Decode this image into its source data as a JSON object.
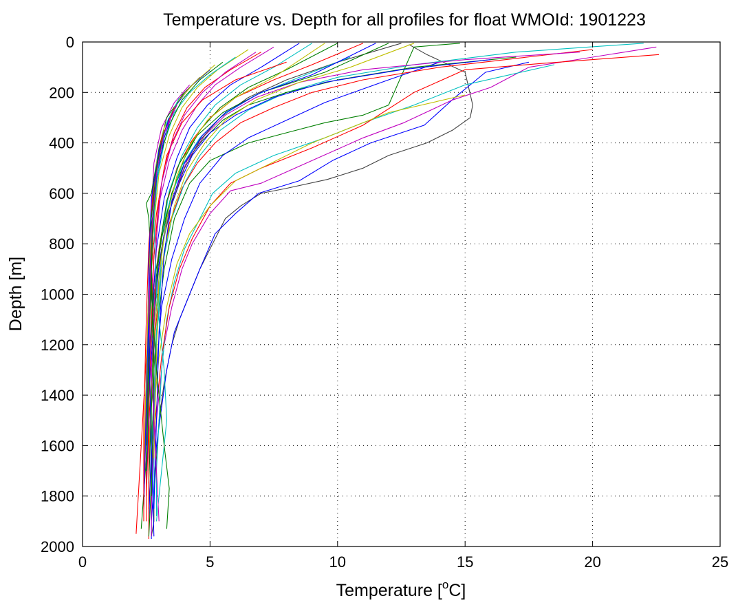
{
  "chart_data": {
    "type": "line",
    "title": "Temperature vs. Depth for all profiles for float WMOId: 1901223",
    "xlabel": "Temperature [",
    "xlabel_sup": "o",
    "xlabel_unit": "C]",
    "ylabel": "Depth [m]",
    "xlim": [
      0,
      25
    ],
    "ylim": [
      0,
      2000
    ],
    "y_inverted": true,
    "grid": true,
    "x_ticks": [
      0,
      5,
      10,
      15,
      20,
      25
    ],
    "y_ticks": [
      0,
      200,
      400,
      600,
      800,
      1000,
      1200,
      1400,
      1600,
      1800,
      2000
    ],
    "x_tick_labels": [
      "0",
      "5",
      "10",
      "15",
      "20",
      "25"
    ],
    "y_tick_labels": [
      "0",
      "200",
      "400",
      "600",
      "800",
      "1000",
      "1200",
      "1400",
      "1600",
      "1800",
      "2000"
    ],
    "series_colors": [
      "#ff0000",
      "#00bfbf",
      "#0000ff",
      "#bfbf00",
      "#bf00bf",
      "#007f00",
      "#404040"
    ],
    "series": [
      {
        "color": "#404040",
        "temperature": [
          12.8,
          13.5,
          15.0,
          15.3,
          15.2,
          14.5,
          13.5,
          12.0,
          11.0,
          9.6,
          8.0,
          7.0,
          6.2,
          5.6,
          5.2,
          4.6,
          4.2,
          3.8,
          3.5,
          3.2,
          3.0,
          2.9,
          2.8,
          2.8,
          2.7
        ],
        "depth": [
          10,
          50,
          120,
          250,
          300,
          350,
          400,
          450,
          500,
          545,
          580,
          600,
          650,
          700,
          780,
          900,
          1000,
          1100,
          1200,
          1350,
          1500,
          1650,
          1800,
          1900,
          1960
        ]
      },
      {
        "color": "#0000ff",
        "temperature": [
          17.5,
          15.8,
          14.6,
          13.4,
          11.3,
          9.8,
          8.5,
          6.9,
          6.0,
          5.2,
          4.6,
          4.2,
          3.6,
          3.3,
          3.1,
          2.9,
          2.8,
          2.7,
          2.7
        ],
        "depth": [
          80,
          120,
          220,
          330,
          400,
          470,
          550,
          600,
          680,
          760,
          900,
          1000,
          1150,
          1300,
          1450,
          1600,
          1750,
          1900,
          1970
        ]
      },
      {
        "color": "#bf00bf",
        "temperature": [
          22.5,
          20.0,
          17.5,
          16.0,
          14.5,
          12.6,
          11.0,
          9.0,
          7.0,
          5.8,
          5.0,
          4.3,
          3.9,
          3.5,
          3.2,
          3.0,
          2.8,
          2.7,
          2.7
        ],
        "depth": [
          20,
          60,
          100,
          180,
          230,
          320,
          380,
          470,
          560,
          590,
          680,
          800,
          900,
          1050,
          1200,
          1400,
          1600,
          1800,
          1960
        ]
      },
      {
        "color": "#00bfbf",
        "temperature": [
          18.5,
          15.0,
          13.0,
          11.0,
          9.5,
          7.5,
          6.0,
          5.1,
          4.6,
          4.0,
          3.6,
          3.3,
          3.1,
          3.0,
          2.9,
          2.9
        ],
        "depth": [
          90,
          170,
          250,
          320,
          380,
          450,
          520,
          600,
          700,
          820,
          950,
          1100,
          1300,
          1500,
          1700,
          1880
        ]
      },
      {
        "color": "#ff0000",
        "temperature": [
          22.6,
          18.0,
          15.0,
          13.0,
          11.0,
          9.0,
          7.0,
          5.8,
          5.0,
          4.3,
          3.8,
          3.4,
          3.1,
          2.9,
          2.7,
          2.6
        ],
        "depth": [
          50,
          85,
          110,
          200,
          330,
          420,
          500,
          560,
          650,
          780,
          900,
          1050,
          1250,
          1450,
          1650,
          1850
        ]
      },
      {
        "color": "#bfbf00",
        "temperature": [
          15.0,
          12.0,
          10.5,
          9.0,
          7.8,
          6.0,
          5.0,
          4.2,
          3.7,
          3.3,
          3.0,
          2.8,
          2.6,
          2.6
        ],
        "depth": [
          210,
          280,
          340,
          400,
          460,
          550,
          650,
          760,
          880,
          1050,
          1250,
          1450,
          1650,
          1850
        ]
      },
      {
        "color": "#007f00",
        "temperature": [
          14.8,
          13.0,
          12.0,
          11.0,
          9.5,
          8.0,
          6.5,
          5.0,
          4.2,
          3.6,
          3.2,
          2.9,
          2.7,
          2.6
        ],
        "depth": [
          5,
          20,
          250,
          290,
          320,
          360,
          400,
          470,
          560,
          700,
          900,
          1150,
          1450,
          1750
        ]
      },
      {
        "color": "#0000ff",
        "temperature": [
          14.0,
          12.0,
          9.5,
          8.0,
          6.5,
          5.5,
          4.6,
          4.0,
          3.5,
          3.1,
          2.9,
          2.7,
          2.6
        ],
        "depth": [
          80,
          150,
          240,
          310,
          380,
          450,
          560,
          700,
          860,
          1050,
          1300,
          1600,
          1900
        ]
      },
      {
        "color": "#ff0000",
        "temperature": [
          20.0,
          14.0,
          11.0,
          9.0,
          7.5,
          6.2,
          5.2,
          4.5,
          3.9,
          3.4,
          3.1,
          2.8,
          2.6,
          2.5
        ],
        "depth": [
          30,
          100,
          150,
          200,
          260,
          320,
          400,
          480,
          580,
          720,
          900,
          1200,
          1500,
          1800
        ]
      },
      {
        "color": "#00bfbf",
        "temperature": [
          22.0,
          17.0,
          13.0,
          10.0,
          8.0,
          6.5,
          5.4,
          4.6,
          4.0,
          3.5,
          3.1,
          2.9,
          2.7
        ],
        "depth": [
          5,
          40,
          90,
          140,
          200,
          270,
          350,
          450,
          560,
          700,
          900,
          1200,
          1600
        ]
      },
      {
        "color": "#007f00",
        "temperature": [
          17.0,
          13.0,
          10.0,
          8.0,
          6.5,
          5.5,
          4.7,
          4.0,
          3.5,
          3.1,
          2.8,
          2.6,
          2.5
        ],
        "depth": [
          60,
          100,
          150,
          200,
          250,
          310,
          390,
          480,
          600,
          760,
          960,
          1300,
          1700
        ]
      },
      {
        "color": "#bf00bf",
        "temperature": [
          19.5,
          15.0,
          11.0,
          8.5,
          6.8,
          5.6,
          4.8,
          4.1,
          3.6,
          3.2,
          2.9,
          2.7,
          2.6
        ],
        "depth": [
          40,
          70,
          110,
          160,
          220,
          290,
          370,
          470,
          600,
          760,
          960,
          1300,
          1650
        ]
      },
      {
        "color": "#0000ff",
        "temperature": [
          16.0,
          12.5,
          9.5,
          7.5,
          6.0,
          5.0,
          4.3,
          3.8,
          3.3,
          3.0,
          2.8,
          2.6,
          2.5
        ],
        "depth": [
          70,
          110,
          160,
          220,
          290,
          360,
          450,
          560,
          700,
          880,
          1100,
          1400,
          1750
        ]
      },
      {
        "color": "#404040",
        "temperature": [
          12.5,
          10.0,
          8.0,
          6.5,
          5.4,
          4.6,
          4.0,
          3.5,
          3.1,
          2.9,
          2.7,
          2.6
        ],
        "depth": [
          5,
          80,
          150,
          220,
          300,
          390,
          500,
          640,
          820,
          1050,
          1350,
          1700
        ]
      },
      {
        "color": "#bfbf00",
        "temperature": [
          13.0,
          10.5,
          8.5,
          6.8,
          5.6,
          4.8,
          4.1,
          3.6,
          3.2,
          2.9,
          2.7,
          2.6
        ],
        "depth": [
          5,
          100,
          160,
          230,
          310,
          400,
          510,
          650,
          830,
          1050,
          1350,
          1650
        ]
      },
      {
        "color": "#ff0000",
        "temperature": [
          11.0,
          9.0,
          7.5,
          6.0,
          5.0,
          4.3,
          3.7,
          3.3,
          3.0,
          2.8,
          2.6,
          2.5,
          2.5
        ],
        "depth": [
          5,
          90,
          150,
          220,
          300,
          390,
          500,
          640,
          820,
          1050,
          1350,
          1650,
          1900
        ]
      },
      {
        "color": "#00bfbf",
        "temperature": [
          9.0,
          7.5,
          6.2,
          5.2,
          4.5,
          3.9,
          3.4,
          3.1,
          2.8,
          2.6,
          2.5
        ],
        "depth": [
          5,
          100,
          170,
          250,
          340,
          450,
          590,
          780,
          1000,
          1350,
          1700
        ]
      },
      {
        "color": "#007f00",
        "temperature": [
          10.0,
          8.0,
          6.5,
          5.4,
          4.6,
          4.0,
          3.5,
          3.1,
          2.8,
          2.6,
          2.5,
          2.3
        ],
        "depth": [
          5,
          110,
          180,
          260,
          350,
          460,
          600,
          780,
          1000,
          1300,
          1650,
          1930
        ]
      },
      {
        "color": "#0000ff",
        "temperature": [
          8.5,
          7.0,
          5.8,
          4.9,
          4.2,
          3.7,
          3.2,
          2.9,
          2.7,
          2.5,
          2.4
        ],
        "depth": [
          5,
          100,
          170,
          250,
          340,
          460,
          620,
          820,
          1100,
          1450,
          1800
        ]
      },
      {
        "color": "#bf00bf",
        "temperature": [
          7.5,
          6.2,
          5.2,
          4.5,
          3.9,
          3.4,
          3.0,
          2.8,
          2.6,
          2.5,
          2.4
        ],
        "depth": [
          20,
          100,
          170,
          250,
          350,
          470,
          640,
          850,
          1150,
          1500,
          1850
        ]
      },
      {
        "color": "#ff0000",
        "temperature": [
          7.0,
          5.8,
          4.8,
          4.1,
          3.6,
          3.2,
          2.9,
          2.7,
          2.5,
          2.3,
          2.1
        ],
        "depth": [
          40,
          110,
          180,
          260,
          360,
          500,
          680,
          900,
          1250,
          1600,
          1950
        ]
      },
      {
        "color": "#bfbf00",
        "temperature": [
          6.5,
          5.3,
          4.5,
          3.9,
          3.4,
          3.0,
          2.8,
          2.6,
          2.5,
          2.4
        ],
        "depth": [
          30,
          110,
          180,
          260,
          370,
          520,
          720,
          980,
          1350,
          1750
        ]
      },
      {
        "color": "#00bfbf",
        "temperature": [
          6.0,
          5.0,
          4.2,
          3.6,
          3.2,
          2.9,
          2.7,
          2.6,
          2.5,
          2.4
        ],
        "depth": [
          60,
          130,
          200,
          280,
          400,
          560,
          780,
          1050,
          1450,
          1800
        ]
      },
      {
        "color": "#007f00",
        "temperature": [
          5.5,
          4.6,
          3.9,
          3.4,
          3.0,
          2.8,
          2.7,
          2.6,
          2.5
        ],
        "depth": [
          80,
          150,
          230,
          330,
          470,
          660,
          900,
          1250,
          1700
        ]
      },
      {
        "color": "#0000ff",
        "temperature": [
          5.0,
          4.2,
          3.6,
          3.2,
          2.9,
          2.7,
          2.6,
          2.5,
          2.4
        ],
        "depth": [
          110,
          180,
          260,
          380,
          540,
          740,
          1000,
          1400,
          1850
        ]
      },
      {
        "color": "#404040",
        "temperature": [
          4.6,
          3.9,
          3.4,
          3.0,
          2.8,
          2.7,
          2.6,
          2.5
        ],
        "depth": [
          140,
          210,
          300,
          430,
          610,
          840,
          1150,
          1600
        ]
      },
      {
        "color": "#bf00bf",
        "temperature": [
          4.2,
          3.6,
          3.1,
          2.8,
          2.7,
          2.6,
          2.5,
          2.4
        ],
        "depth": [
          170,
          240,
          340,
          480,
          680,
          940,
          1300,
          1750
        ]
      },
      {
        "color": "#ff0000",
        "temperature": [
          8.0,
          6.0,
          4.7,
          3.9,
          3.3,
          3.0,
          2.8,
          2.7,
          2.6,
          2.6,
          2.6
        ],
        "depth": [
          80,
          150,
          230,
          320,
          450,
          620,
          850,
          1100,
          1450,
          1750,
          1970
        ]
      },
      {
        "color": "#007f00",
        "temperature": [
          12.0,
          9.5,
          7.0,
          5.5,
          4.5,
          3.8,
          3.3,
          3.0,
          2.8,
          2.7,
          2.7,
          2.6
        ],
        "depth": [
          5,
          120,
          200,
          280,
          370,
          480,
          630,
          830,
          1100,
          1450,
          1750,
          1960
        ]
      },
      {
        "color": "#00bfbf",
        "temperature": [
          10.5,
          8.5,
          6.8,
          5.5,
          4.6,
          3.9,
          3.4,
          3.1,
          2.9,
          2.8,
          2.8
        ],
        "depth": [
          60,
          140,
          210,
          290,
          380,
          490,
          640,
          850,
          1150,
          1500,
          1850
        ]
      },
      {
        "color": "#bfbf00",
        "temperature": [
          9.5,
          7.5,
          6.0,
          4.9,
          4.2,
          3.7,
          3.3,
          3.0,
          2.9,
          2.8
        ],
        "depth": [
          5,
          140,
          220,
          310,
          410,
          530,
          700,
          920,
          1250,
          1650
        ]
      },
      {
        "color": "#0000ff",
        "temperature": [
          11.5,
          9.0,
          7.0,
          5.6,
          4.7,
          4.0,
          3.5,
          3.2,
          3.0,
          2.9,
          2.8
        ],
        "depth": [
          5,
          130,
          200,
          280,
          370,
          480,
          630,
          840,
          1150,
          1500,
          1850
        ]
      },
      {
        "color": "#bf00bf",
        "temperature": [
          6.8,
          5.6,
          4.7,
          4.0,
          3.5,
          3.1,
          2.9,
          2.8,
          2.8,
          2.7
        ],
        "depth": [
          40,
          120,
          200,
          290,
          400,
          560,
          780,
          1080,
          1450,
          1850
        ]
      },
      {
        "color": "#007f00",
        "temperature": [
          4.0,
          3.3,
          3.0,
          2.7,
          2.5,
          2.6,
          2.7,
          2.8,
          2.7
        ],
        "depth": [
          200,
          300,
          420,
          600,
          640,
          700,
          900,
          1300,
          1800
        ]
      },
      {
        "color": "#bfbf00",
        "temperature": [
          5.2,
          4.4,
          3.7,
          3.2,
          2.9,
          2.7,
          2.6,
          2.5,
          2.4
        ],
        "depth": [
          90,
          160,
          240,
          340,
          480,
          680,
          940,
          1300,
          1700
        ]
      },
      {
        "color": "#00bfbf",
        "temperature": [
          3.8,
          3.3,
          3.0,
          2.8,
          2.9,
          3.2,
          3.3,
          3.1,
          2.9
        ],
        "depth": [
          220,
          320,
          460,
          700,
          1000,
          1300,
          1500,
          1700,
          1900
        ]
      },
      {
        "color": "#ff0000",
        "temperature": [
          3.6,
          3.1,
          2.8,
          2.6,
          2.5,
          2.4,
          2.4
        ],
        "depth": [
          260,
          380,
          560,
          800,
          1100,
          1500,
          1900
        ]
      },
      {
        "color": "#0000ff",
        "temperature": [
          3.4,
          3.0,
          2.7,
          2.6,
          2.6,
          2.7,
          2.8
        ],
        "depth": [
          300,
          430,
          620,
          880,
          1200,
          1600,
          1960
        ]
      },
      {
        "color": "#007f00",
        "temperature": [
          3.2,
          2.9,
          2.7,
          2.7,
          2.9,
          3.2,
          3.4,
          3.3
        ],
        "depth": [
          350,
          500,
          700,
          1000,
          1300,
          1600,
          1770,
          1930
        ]
      },
      {
        "color": "#bf00bf",
        "temperature": [
          3.7,
          3.2,
          2.9,
          2.7,
          2.6,
          2.8,
          3.0
        ],
        "depth": [
          250,
          360,
          520,
          760,
          1100,
          1500,
          1900
        ]
      }
    ]
  }
}
